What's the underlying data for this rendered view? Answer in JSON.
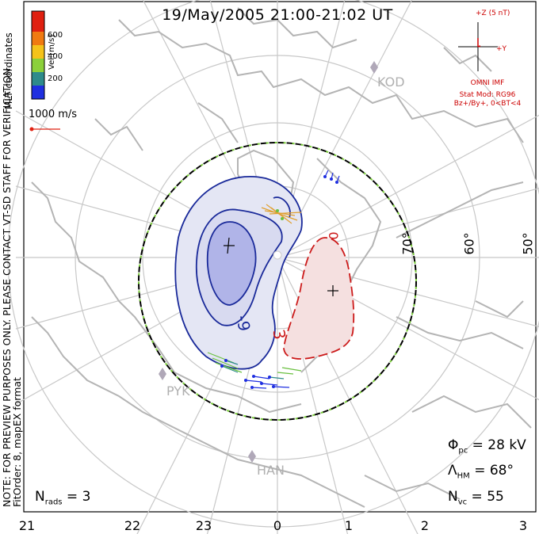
{
  "title": "19/May/2005 21:00-21:02 UT",
  "coords_label": "MLT coordinates",
  "note_line1": "NOTE: FOR PREVIEW PURPOSES ONLY. PLEASE CONTACT VT-SD STAFF FOR VERIFICATION.",
  "note_line2": "FitOrder: 8, mapEX format",
  "colorbar": {
    "label": "Vel [m/s]",
    "ticks": [
      "600",
      "400",
      "200"
    ],
    "colors": [
      "#1f2fe0",
      "#2e8b8b",
      "#8bd03a",
      "#f5c31a",
      "#f07a10",
      "#e02010"
    ]
  },
  "scale_vector_label": "1000 m/s",
  "imf": {
    "z_label": "+Z (5 nT)",
    "y_label": "+Y",
    "source": "OMNI IMF",
    "model_line1": "Stat Mod: RG96",
    "model_line2": "Bz+/By+, 0<BT<4"
  },
  "contours": {
    "negative_label": "-9",
    "positive_label": "3",
    "zero_label": "0"
  },
  "stats": {
    "phi_pc": "Φpc = 28 kV",
    "phi_symbol": "Φ",
    "phi_sub": "pc",
    "phi_value": "= 28 kV",
    "lambda_symbol": "Λ",
    "lambda_sub": "HM",
    "lambda_value": "= 68°",
    "nvc_symbol": "N",
    "nvc_sub": "vc",
    "nvc_value": "= 55",
    "nrads_symbol": "N",
    "nrads_sub": "rads",
    "nrads_value": "= 3"
  },
  "latitudes": [
    "70°",
    "60°",
    "50°"
  ],
  "hours": [
    "21",
    "22",
    "23",
    "0",
    "1",
    "2",
    "3"
  ],
  "stations": [
    "KOD",
    "PYK",
    "HAN"
  ]
}
